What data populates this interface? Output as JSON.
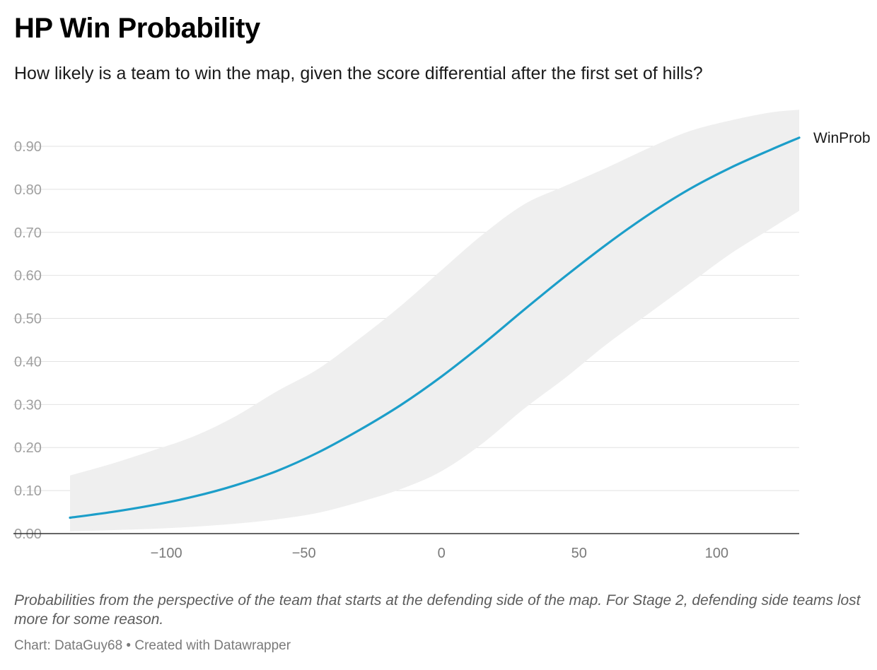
{
  "title": "HP Win Probability",
  "subtitle": "How likely is a team to win the map, given the score differential after the first set of hills?",
  "notes": "Probabilities from the perspective of the team that starts at the defending side of the map. For Stage 2, defending side teams lost more for some reason.",
  "footer": {
    "source": "Chart: DataGuy68",
    "separator": " • ",
    "credit": "Created with Datawrapper"
  },
  "colors": {
    "line": "#1c9ec9",
    "band": "#efefef",
    "grid": "#e2e2e2",
    "axis": "#333333",
    "tick_label": "#a0a0a0",
    "x_tick_label": "#7a7a7a"
  },
  "chart_data": {
    "type": "line",
    "xlim": [
      -135,
      130
    ],
    "ylim": [
      0,
      0.9
    ],
    "x_ticks": [
      -100,
      -50,
      0,
      50,
      100
    ],
    "x_tick_labels": [
      "−100",
      "−50",
      "0",
      "50",
      "100"
    ],
    "y_ticks": [
      0,
      0.1,
      0.2,
      0.3,
      0.4,
      0.5,
      0.6,
      0.7,
      0.8,
      0.9
    ],
    "y_tick_labels": [
      "0.00",
      "0.10",
      "0.20",
      "0.30",
      "0.40",
      "0.50",
      "0.60",
      "0.70",
      "0.80",
      "0.90"
    ],
    "grid": true,
    "series": [
      {
        "name": "WinProb",
        "x": [
          -135,
          -120,
          -105,
          -90,
          -75,
          -60,
          -45,
          -30,
          -15,
          0,
          15,
          30,
          45,
          60,
          75,
          90,
          105,
          120,
          130
        ],
        "y": [
          0.037,
          0.05,
          0.066,
          0.086,
          0.112,
          0.145,
          0.188,
          0.24,
          0.298,
          0.365,
          0.44,
          0.52,
          0.598,
          0.672,
          0.74,
          0.8,
          0.85,
          0.893,
          0.92
        ],
        "lower": [
          0.005,
          0.008,
          0.011,
          0.016,
          0.023,
          0.033,
          0.048,
          0.073,
          0.103,
          0.145,
          0.21,
          0.29,
          0.362,
          0.44,
          0.51,
          0.58,
          0.65,
          0.71,
          0.75
        ],
        "upper": [
          0.135,
          0.162,
          0.193,
          0.226,
          0.272,
          0.33,
          0.382,
          0.452,
          0.528,
          0.612,
          0.695,
          0.765,
          0.808,
          0.85,
          0.895,
          0.935,
          0.96,
          0.979,
          0.985
        ]
      }
    ]
  }
}
